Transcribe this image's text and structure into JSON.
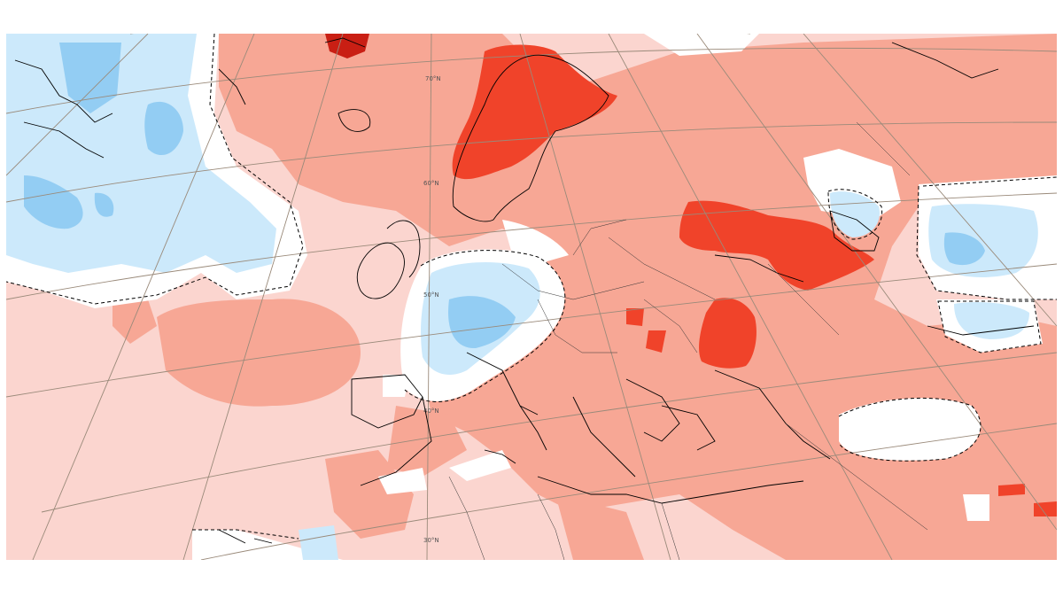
{
  "map": {
    "type": "anomaly-map",
    "region": "Europe, North Atlantic and Mediterranean",
    "colors": {
      "background": "#ffffff",
      "warm_light": "#fbd5cf",
      "warm_medium": "#f7a795",
      "warm_strong": "#f0432a",
      "warm_darkest": "#c91f14",
      "cold_light": "#cce9fb",
      "cold_medium": "#93cdf3",
      "neutral": "#ffffff",
      "coastline": "#000000",
      "graticule": "#9a8a7a",
      "contour_dashed": "#000000"
    },
    "graticule_labels": [
      "70°N",
      "60°N",
      "50°N",
      "40°N",
      "30°N"
    ],
    "legend": []
  }
}
